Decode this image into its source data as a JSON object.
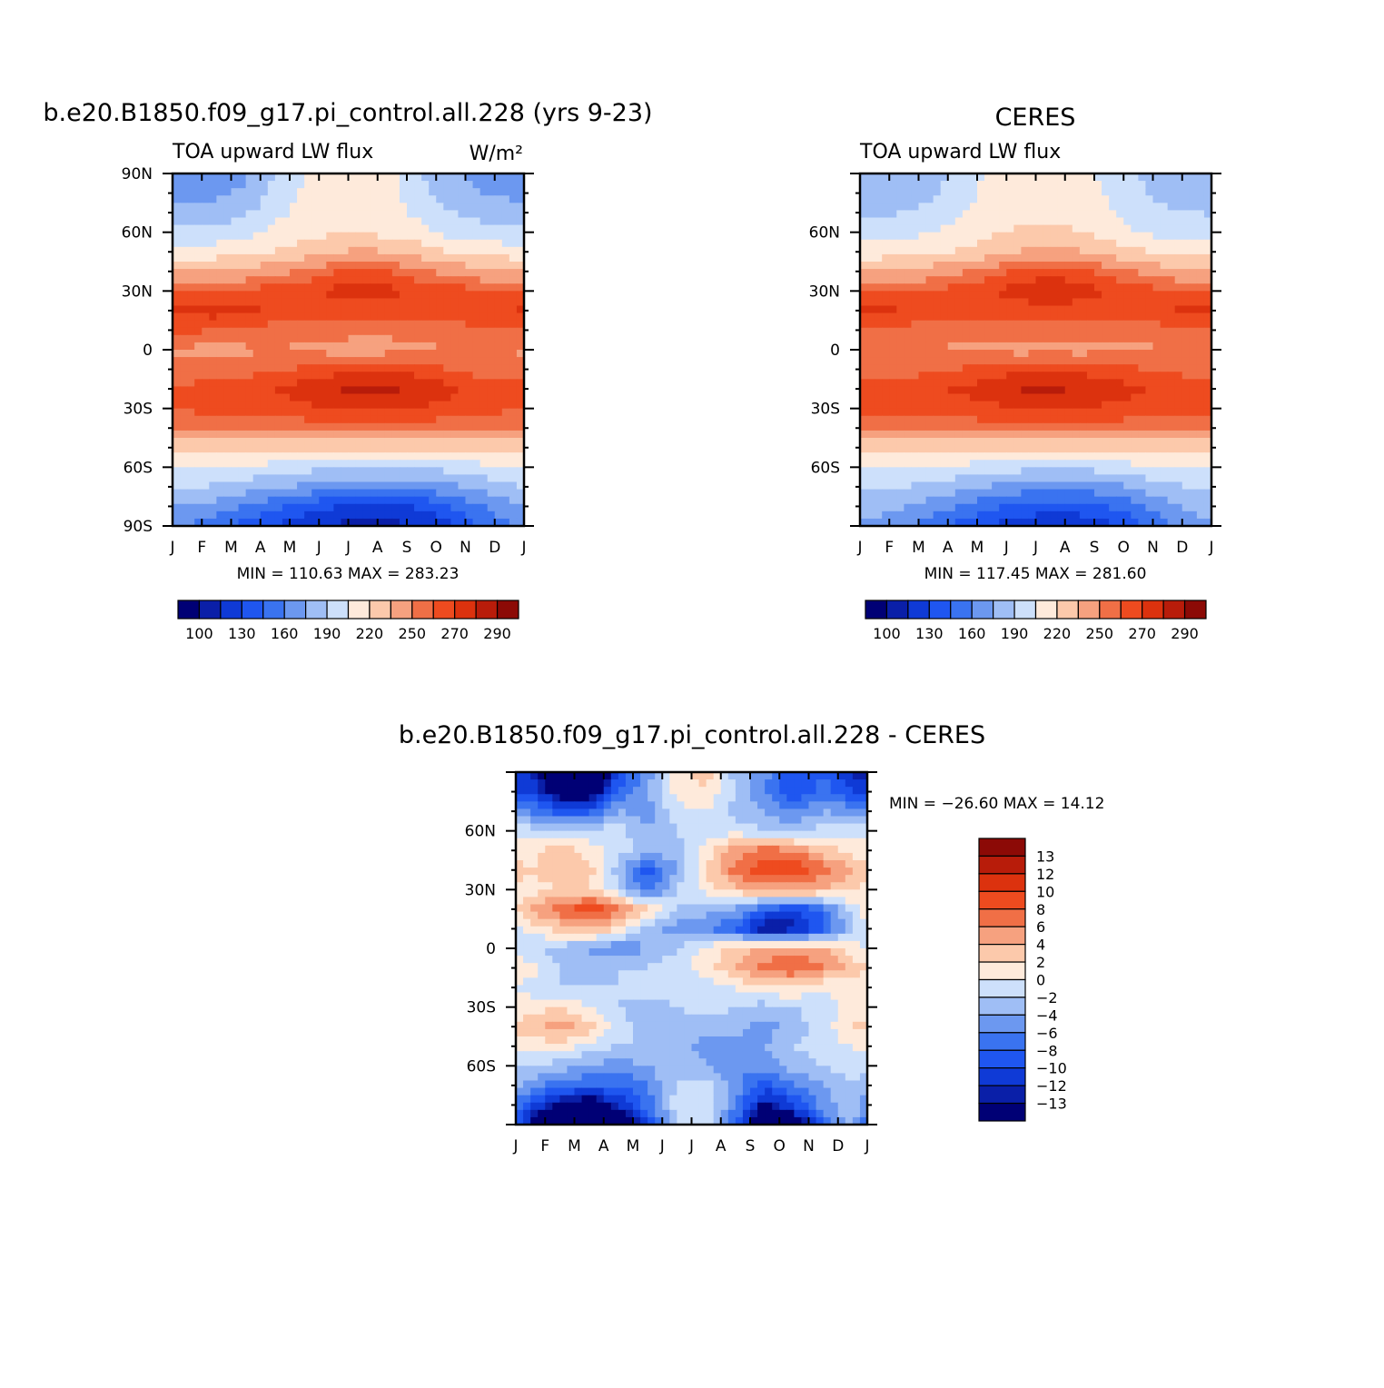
{
  "chart_data": [
    {
      "type": "heatmap",
      "title": "b.e20.B1850.f09_g17.pi_control.all.228 (yrs 9-23)",
      "left_label": "TOA upward LW flux",
      "right_label": "W/m²",
      "x_tick_labels": [
        "J",
        "F",
        "M",
        "A",
        "M",
        "J",
        "J",
        "A",
        "S",
        "O",
        "N",
        "D",
        "J"
      ],
      "y_tick_labels": [
        "90N",
        "60N",
        "30N",
        "0",
        "30S",
        "60S",
        "90S"
      ],
      "ylim": [
        -90,
        90
      ],
      "minmax": "MIN = 110.63 MAX = 283.23",
      "min": 110.63,
      "max": 283.23,
      "levels": [
        100,
        115,
        130,
        145,
        160,
        175,
        190,
        205,
        220,
        235,
        250,
        260,
        270,
        280,
        290
      ],
      "colorbar_labels": [
        "100",
        "130",
        "160",
        "190",
        "220",
        "250",
        "270",
        "290"
      ],
      "colorbar_orientation": "horizontal",
      "lat": [
        90,
        80,
        70,
        60,
        50,
        40,
        30,
        20,
        10,
        0,
        -10,
        -20,
        -30,
        -40,
        -50,
        -60,
        -70,
        -80,
        -90
      ],
      "months": [
        "Jan",
        "Feb",
        "Mar",
        "Apr",
        "May",
        "Jun",
        "Jul",
        "Aug",
        "Sep",
        "Oct",
        "Nov",
        "Dec"
      ],
      "values": [
        [
          165,
          166,
          172,
          190,
          205,
          210,
          210,
          208,
          190,
          178,
          170,
          168
        ],
        [
          170,
          172,
          178,
          195,
          208,
          212,
          212,
          210,
          195,
          182,
          175,
          172
        ],
        [
          180,
          182,
          188,
          200,
          210,
          213,
          213,
          210,
          200,
          190,
          185,
          182
        ],
        [
          193,
          195,
          200,
          210,
          215,
          218,
          218,
          215,
          210,
          200,
          196,
          194
        ],
        [
          210,
          212,
          215,
          220,
          228,
          235,
          238,
          235,
          228,
          220,
          215,
          212
        ],
        [
          235,
          237,
          240,
          245,
          252,
          260,
          262,
          260,
          252,
          245,
          240,
          237
        ],
        [
          262,
          262,
          263,
          265,
          268,
          272,
          274,
          272,
          268,
          265,
          263,
          262
        ],
        [
          272,
          275,
          272,
          268,
          266,
          266,
          267,
          266,
          265,
          266,
          268,
          270
        ],
        [
          262,
          260,
          258,
          255,
          255,
          254,
          253,
          253,
          254,
          255,
          258,
          260
        ],
        [
          248,
          246,
          248,
          250,
          248,
          246,
          245,
          246,
          248,
          250,
          250,
          249
        ],
        [
          254,
          255,
          256,
          258,
          262,
          266,
          268,
          268,
          265,
          260,
          256,
          255
        ],
        [
          262,
          264,
          266,
          270,
          275,
          280,
          282,
          282,
          278,
          272,
          266,
          263
        ],
        [
          262,
          263,
          264,
          266,
          268,
          270,
          272,
          272,
          270,
          266,
          264,
          262
        ],
        [
          250,
          251,
          252,
          253,
          254,
          255,
          256,
          256,
          255,
          253,
          251,
          250
        ],
        [
          226,
          226,
          226,
          225,
          224,
          222,
          222,
          222,
          224,
          225,
          226,
          226
        ],
        [
          205,
          204,
          202,
          200,
          196,
          192,
          190,
          190,
          192,
          196,
          200,
          204
        ],
        [
          192,
          188,
          183,
          178,
          172,
          166,
          164,
          164,
          166,
          172,
          180,
          188
        ],
        [
          175,
          168,
          160,
          150,
          140,
          130,
          125,
          126,
          132,
          145,
          158,
          170
        ],
        [
          160,
          150,
          140,
          128,
          118,
          112,
          110,
          111,
          115,
          128,
          145,
          158
        ]
      ]
    },
    {
      "type": "heatmap",
      "title": "CERES",
      "left_label": "TOA upward LW flux",
      "x_tick_labels": [
        "J",
        "F",
        "M",
        "A",
        "M",
        "J",
        "J",
        "A",
        "S",
        "O",
        "N",
        "D",
        "J"
      ],
      "y_tick_labels": [
        "60N",
        "30N",
        "0",
        "30S",
        "60S"
      ],
      "ylim": [
        -90,
        90
      ],
      "minmax": "MIN = 117.45 MAX = 281.60",
      "min": 117.45,
      "max": 281.6,
      "levels": [
        100,
        115,
        130,
        145,
        160,
        175,
        190,
        205,
        220,
        235,
        250,
        260,
        270,
        280,
        290
      ],
      "colorbar_labels": [
        "100",
        "130",
        "160",
        "190",
        "220",
        "250",
        "270",
        "290"
      ],
      "colorbar_orientation": "horizontal",
      "lat": [
        90,
        80,
        70,
        60,
        50,
        40,
        30,
        20,
        10,
        0,
        -10,
        -20,
        -30,
        -40,
        -50,
        -60,
        -70,
        -80,
        -90
      ],
      "months": [
        "Jan",
        "Feb",
        "Mar",
        "Apr",
        "May",
        "Jun",
        "Jul",
        "Aug",
        "Sep",
        "Oct",
        "Nov",
        "Dec"
      ],
      "values": [
        [
          175,
          178,
          185,
          195,
          210,
          215,
          215,
          212,
          200,
          190,
          182,
          178
        ],
        [
          180,
          182,
          188,
          198,
          212,
          216,
          216,
          214,
          202,
          192,
          185,
          182
        ],
        [
          188,
          190,
          195,
          205,
          214,
          218,
          218,
          216,
          208,
          198,
          192,
          190
        ],
        [
          198,
          200,
          205,
          212,
          218,
          222,
          222,
          220,
          214,
          205,
          200,
          198
        ],
        [
          212,
          214,
          218,
          222,
          228,
          236,
          238,
          236,
          228,
          222,
          216,
          213
        ],
        [
          236,
          238,
          242,
          248,
          256,
          264,
          266,
          264,
          256,
          248,
          242,
          238
        ],
        [
          258,
          260,
          262,
          266,
          270,
          274,
          278,
          274,
          270,
          266,
          262,
          260
        ],
        [
          272,
          270,
          266,
          264,
          264,
          266,
          268,
          266,
          264,
          266,
          270,
          272
        ],
        [
          256,
          256,
          255,
          254,
          254,
          254,
          254,
          254,
          254,
          255,
          256,
          256
        ],
        [
          250,
          250,
          250,
          248,
          247,
          246,
          246,
          246,
          247,
          248,
          250,
          250
        ],
        [
          255,
          256,
          258,
          261,
          264,
          267,
          268,
          267,
          264,
          261,
          258,
          256
        ],
        [
          264,
          266,
          268,
          272,
          276,
          281,
          281,
          280,
          276,
          272,
          267,
          265
        ],
        [
          264,
          264,
          265,
          266,
          268,
          270,
          271,
          270,
          268,
          266,
          265,
          264
        ],
        [
          251,
          252,
          253,
          254,
          255,
          256,
          256,
          256,
          255,
          254,
          252,
          251
        ],
        [
          226,
          226,
          226,
          225,
          224,
          223,
          222,
          223,
          224,
          225,
          226,
          226
        ],
        [
          206,
          205,
          203,
          201,
          198,
          195,
          193,
          194,
          197,
          201,
          204,
          206
        ],
        [
          193,
          190,
          186,
          180,
          174,
          168,
          166,
          166,
          170,
          178,
          186,
          192
        ],
        [
          182,
          177,
          168,
          158,
          148,
          140,
          136,
          138,
          145,
          158,
          172,
          180
        ],
        [
          170,
          162,
          150,
          138,
          128,
          120,
          118,
          119,
          125,
          140,
          158,
          168
        ]
      ]
    },
    {
      "type": "heatmap",
      "title": "b.e20.B1850.f09_g17.pi_control.all.228 - CERES",
      "x_tick_labels": [
        "J",
        "F",
        "M",
        "A",
        "M",
        "J",
        "J",
        "A",
        "S",
        "O",
        "N",
        "D",
        "J"
      ],
      "y_tick_labels": [
        "60N",
        "30N",
        "0",
        "30S",
        "60S"
      ],
      "ylim": [
        -90,
        90
      ],
      "minmax": "MIN = −26.60 MAX =   14.12",
      "min": -26.6,
      "max": 14.12,
      "levels": [
        -13,
        -12,
        -10,
        -8,
        -6,
        -4,
        -2,
        0,
        2,
        4,
        6,
        8,
        10,
        12,
        13
      ],
      "colorbar_labels": [
        "13",
        "12",
        "10",
        "8",
        "6",
        "4",
        "2",
        "0",
        "−2",
        "−4",
        "−6",
        "−8",
        "−10",
        "−12",
        "−13"
      ],
      "colorbar_orientation": "vertical",
      "lat": [
        90,
        80,
        70,
        60,
        50,
        40,
        30,
        20,
        10,
        0,
        -10,
        -20,
        -30,
        -40,
        -50,
        -60,
        -70,
        -80,
        -90
      ],
      "months": [
        "Jan",
        "Feb",
        "Mar",
        "Apr",
        "May",
        "Jun",
        "Jul",
        "Aug",
        "Sep",
        "Oct",
        "Nov",
        "Dec"
      ],
      "values": [
        [
          -12,
          -18,
          -20,
          -10,
          -5,
          1,
          3,
          -3,
          -5,
          -10,
          -8,
          -13
        ],
        [
          -10,
          -15,
          -16,
          -8,
          -4,
          1,
          2,
          -2,
          -6,
          -10,
          -7,
          -10
        ],
        [
          -6,
          -9,
          -9,
          -4,
          -5,
          -1,
          0,
          -3,
          -4,
          -6,
          -4,
          -5
        ],
        [
          -1,
          -2,
          -1,
          -1,
          -4,
          -2,
          -1,
          -1,
          -2,
          -3,
          -1,
          -1
        ],
        [
          1,
          3,
          1,
          -1,
          -3,
          -3,
          1,
          5,
          7,
          6,
          3,
          1
        ],
        [
          2,
          4,
          3,
          -3,
          -9,
          -4,
          2,
          7,
          9,
          10,
          7,
          4
        ],
        [
          1,
          2,
          2,
          -2,
          -7,
          -2,
          1,
          3,
          5,
          5,
          4,
          2
        ],
        [
          4,
          7,
          10,
          7,
          2,
          -2,
          -3,
          -4,
          -8,
          -10,
          -7,
          -1
        ],
        [
          1,
          3,
          4,
          2,
          -3,
          -5,
          -6,
          -8,
          -14,
          -13,
          -9,
          -2
        ],
        [
          -2,
          -3,
          -4,
          -6,
          -4,
          -2,
          1,
          3,
          4,
          5,
          4,
          1
        ],
        [
          1,
          -2,
          -4,
          -2,
          -2,
          -1,
          1,
          4,
          7,
          8,
          6,
          3
        ],
        [
          -1,
          -2,
          -2,
          -2,
          -1,
          -1,
          -1,
          0,
          2,
          2,
          0,
          1
        ],
        [
          1,
          2,
          0,
          -2,
          -3,
          -2,
          -1,
          -2,
          -3,
          -2,
          -1,
          1
        ],
        [
          3,
          5,
          3,
          -1,
          -3,
          -4,
          -3,
          -3,
          -5,
          -3,
          -1,
          2
        ],
        [
          1,
          1,
          -1,
          -2,
          -2,
          -3,
          -5,
          -5,
          -4,
          -2,
          -1,
          0
        ],
        [
          -2,
          -3,
          -4,
          -5,
          -4,
          -2,
          -4,
          -6,
          -5,
          -3,
          -2,
          -1
        ],
        [
          -5,
          -7,
          -8,
          -8,
          -6,
          -2,
          -1,
          -5,
          -9,
          -6,
          -4,
          -2
        ],
        [
          -10,
          -14,
          -16,
          -12,
          -7,
          -1,
          0,
          -6,
          -14,
          -10,
          -5,
          -2
        ],
        [
          -14,
          -20,
          -22,
          -18,
          -10,
          -2,
          -1,
          -8,
          -18,
          -16,
          -8,
          -3
        ]
      ]
    }
  ],
  "colors": {
    "scale": [
      "#000075",
      "#0a1fa8",
      "#0f3ad6",
      "#1f56f0",
      "#3a73f0",
      "#6c98f0",
      "#9fbef5",
      "#cde0fb",
      "#feeadb",
      "#fcc9ab",
      "#f6a17f",
      "#f06f46",
      "#ee4b1f",
      "#dc320e",
      "#b81c0a",
      "#8c0a06"
    ]
  }
}
